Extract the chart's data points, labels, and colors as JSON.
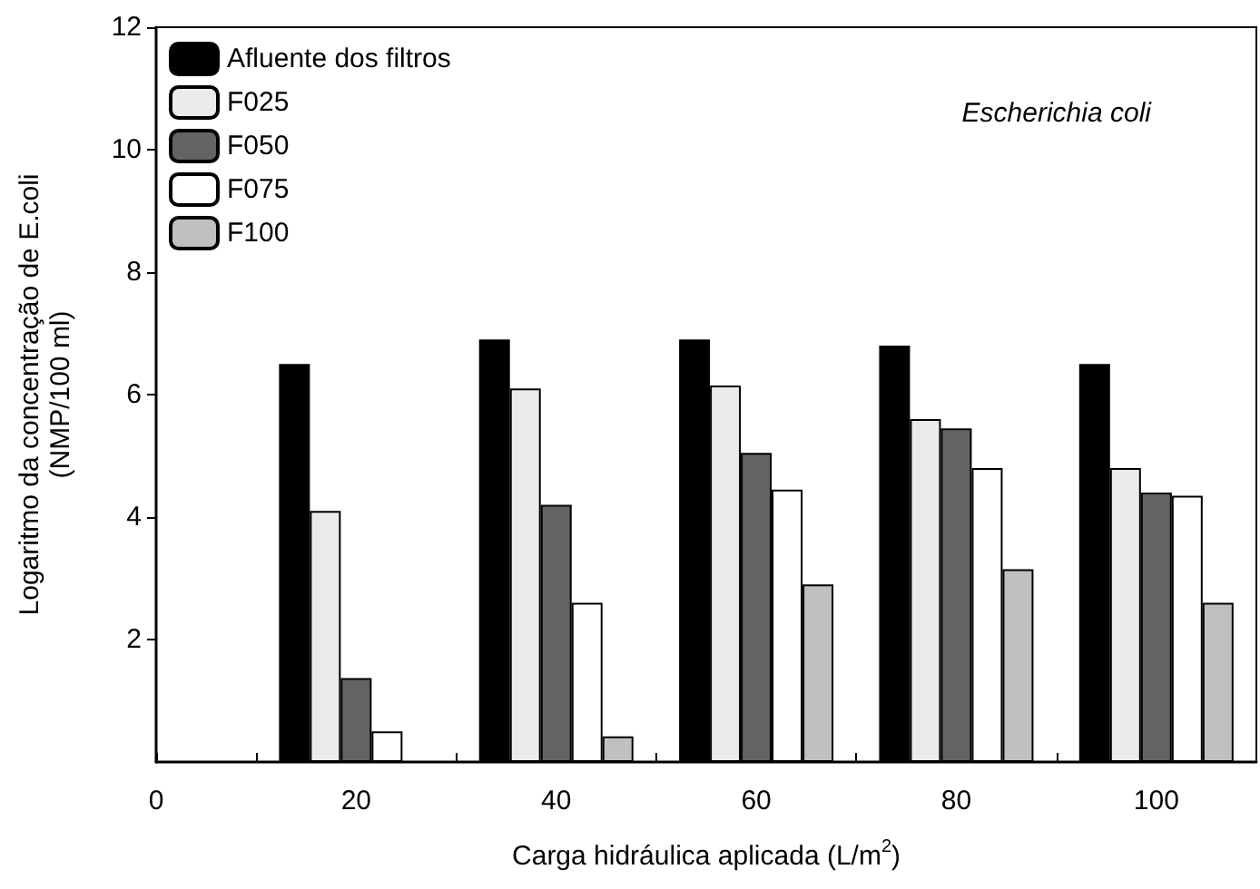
{
  "chart_data": {
    "type": "bar",
    "xlabel": "Carga hidráulica aplicada (L/m$^{2}$)",
    "ylabel": "Logaritmo da concentração de E.coli\n(NMP/100 ml)",
    "annotations": [
      "Escherichia coli"
    ],
    "x": [
      20,
      40,
      60,
      80,
      100
    ],
    "series": [
      {
        "name": "Afluente dos filtros",
        "color": "#000000",
        "values": [
          6.5,
          6.9,
          6.9,
          6.8,
          6.5
        ]
      },
      {
        "name": "F025",
        "color": "#ebebeb",
        "values": [
          4.1,
          6.1,
          6.15,
          5.6,
          4.8
        ]
      },
      {
        "name": "F050",
        "color": "#636363",
        "values": [
          1.37,
          4.2,
          5.05,
          5.45,
          4.4
        ]
      },
      {
        "name": "F075",
        "color": "#ffffff",
        "values": [
          0.5,
          2.6,
          4.45,
          4.8,
          4.35
        ]
      },
      {
        "name": "F100",
        "color": "#c0c0c0",
        "values": [
          null,
          0.42,
          2.9,
          3.15,
          2.6
        ]
      }
    ],
    "xlim": [
      0,
      110
    ],
    "xticks": [
      0,
      {
        "value": 10,
        "label": null
      },
      20,
      {
        "value": 30,
        "label": null
      },
      40,
      {
        "value": 50,
        "label": null
      },
      60,
      {
        "value": 70,
        "label": null
      },
      80,
      {
        "value": 90,
        "label": null
      },
      100
    ],
    "ylim": [
      0,
      12
    ],
    "yticks": [
      2,
      4,
      6,
      8,
      10,
      12
    ],
    "grid": false,
    "legend": "top left"
  }
}
